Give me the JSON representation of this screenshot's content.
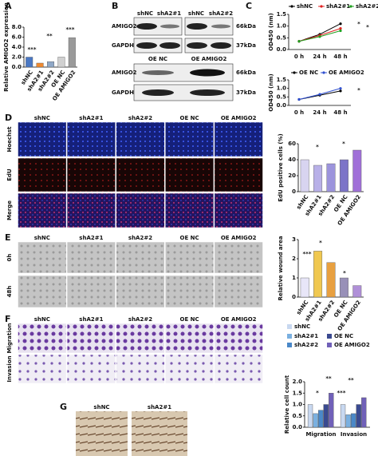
{
  "panel_labels": [
    "A",
    "B",
    "C",
    "D",
    "E",
    "F",
    "G"
  ],
  "blots": {
    "top_lanes": [
      "shNC",
      "shA2#1",
      "shNC",
      "shA2#2"
    ],
    "top_rows": [
      "AMIGO2",
      "GAPDH"
    ],
    "top_sizes": [
      "66kDa",
      "37kDa"
    ],
    "bottom_lanes": [
      "OE NC",
      "OE AMIGO2"
    ],
    "bottom_rows": [
      "AMIGO2",
      "GAPDH"
    ],
    "bottom_sizes": [
      "66kDa",
      "37kDa"
    ]
  },
  "image_grid": {
    "columns": [
      "shNC",
      "shA2#1",
      "shA2#2",
      "OE NC",
      "OE AMIGO2"
    ],
    "d_rows": [
      "Hoechst",
      "EdU",
      "Merge"
    ],
    "e_rows": [
      "0h",
      "48h"
    ],
    "f_rows": [
      "Migration",
      "Invasion"
    ],
    "g_columns": [
      "shNC",
      "shA2#1"
    ]
  },
  "chart_data": [
    {
      "type": "bar",
      "y_label": "Relative AMIGO2 expression",
      "categories": [
        "shNC",
        "shA2#1",
        "shA2#2",
        "OE NC",
        "OE AMIGO2"
      ],
      "values": [
        2.0,
        0.8,
        1.1,
        2.0,
        5.9
      ],
      "colors": [
        "#4a78c4",
        "#f08a30",
        "#8fa8c8",
        "#d0d0d0",
        "#9a9a9a"
      ],
      "ylim": [
        0,
        8
      ],
      "yticks": [
        {
          "value": 0,
          "label": "0.0"
        },
        {
          "value": 2,
          "label": "2.0"
        },
        {
          "value": 4,
          "label": "4.0"
        },
        {
          "value": 6,
          "label": "6.0"
        },
        {
          "value": 8,
          "label": "8.0"
        }
      ],
      "annotations": [
        "***",
        "**",
        "***"
      ]
    },
    {
      "type": "line",
      "y_label": "OD450 (nm)",
      "categories": [
        "0 h",
        "24 h",
        "48 h"
      ],
      "series": [
        {
          "name": "shNC",
          "color": "#000000",
          "values": [
            0.35,
            0.65,
            1.1
          ]
        },
        {
          "name": "shA2#1",
          "color": "#e02020",
          "values": [
            0.35,
            0.6,
            0.9
          ]
        },
        {
          "name": "shA2#2",
          "color": "#20a020",
          "values": [
            0.35,
            0.55,
            0.8
          ]
        }
      ],
      "ylim": [
        0,
        1.5
      ],
      "yticks": [
        {
          "value": 0,
          "label": "0.0"
        },
        0.5,
        {
          "value": 1,
          "label": "1.0"
        },
        1.5
      ],
      "annotations": [
        "*",
        "*"
      ]
    },
    {
      "type": "line",
      "y_label": "OD450 (nm)",
      "categories": [
        "0 h",
        "24 h",
        "48 h"
      ],
      "series": [
        {
          "name": "OE NC",
          "color": "#000000",
          "values": [
            0.35,
            0.6,
            0.85
          ]
        },
        {
          "name": "OE AMIGO2",
          "color": "#3050d0",
          "values": [
            0.35,
            0.65,
            1.0
          ]
        }
      ],
      "ylim": [
        0,
        1.5
      ],
      "yticks": [
        {
          "value": 0,
          "label": "0.0"
        },
        0.5,
        {
          "value": 1,
          "label": "1.0"
        },
        1.5
      ],
      "annotations": [
        "*"
      ]
    },
    {
      "type": "bar",
      "y_label": "EdU positive cells (%)",
      "categories": [
        "shNC",
        "shA2#1",
        "shA2#2",
        "OE NC",
        "OE AMIGO2"
      ],
      "values": [
        40,
        33,
        35,
        40,
        52
      ],
      "colors": [
        "#d8d4f0",
        "#b8b0e8",
        "#9c94dc",
        "#7c74c8",
        "#a070d8"
      ],
      "ylim": [
        0,
        60
      ],
      "yticks": [
        0,
        20,
        40,
        60
      ],
      "annotations": [
        "*",
        "*"
      ]
    },
    {
      "type": "bar",
      "y_label": "Relative wound area",
      "categories": [
        "shNC",
        "shA2#1",
        "shA2#2",
        "OE NC",
        "OE AMIGO2"
      ],
      "values": [
        1.0,
        2.4,
        1.8,
        1.0,
        0.6
      ],
      "colors": [
        "#e8e6f8",
        "#f0c850",
        "#e8a040",
        "#9890b8",
        "#b090d8"
      ],
      "ylim": [
        0,
        3
      ],
      "yticks": [
        0,
        1,
        2,
        3
      ],
      "annotations": [
        "*",
        "***",
        "*"
      ]
    },
    {
      "type": "bar",
      "y_label": "Relative cell count",
      "categories": [
        "Migration",
        "Invasion"
      ],
      "series": [
        {
          "name": "shNC",
          "color": "#c8d8f0",
          "values": [
            1.0,
            1.0
          ]
        },
        {
          "name": "shA2#1",
          "color": "#7ab0e0",
          "values": [
            0.6,
            0.55
          ]
        },
        {
          "name": "shA2#2",
          "color": "#4a88c8",
          "values": [
            0.75,
            0.6
          ]
        },
        {
          "name": "OE NC",
          "color": "#3a4a90",
          "values": [
            1.0,
            1.0
          ]
        },
        {
          "name": "OE AMIGO2",
          "color": "#7060b8",
          "values": [
            1.5,
            1.3
          ]
        }
      ],
      "ylim": [
        0,
        2
      ],
      "yticks": [
        {
          "value": 0,
          "label": "0.0"
        },
        0.5,
        {
          "value": 1,
          "label": "1.0"
        },
        1.5,
        {
          "value": 2,
          "label": "2.0"
        }
      ],
      "annotations": [
        "*",
        "**",
        "**",
        "***"
      ]
    }
  ]
}
